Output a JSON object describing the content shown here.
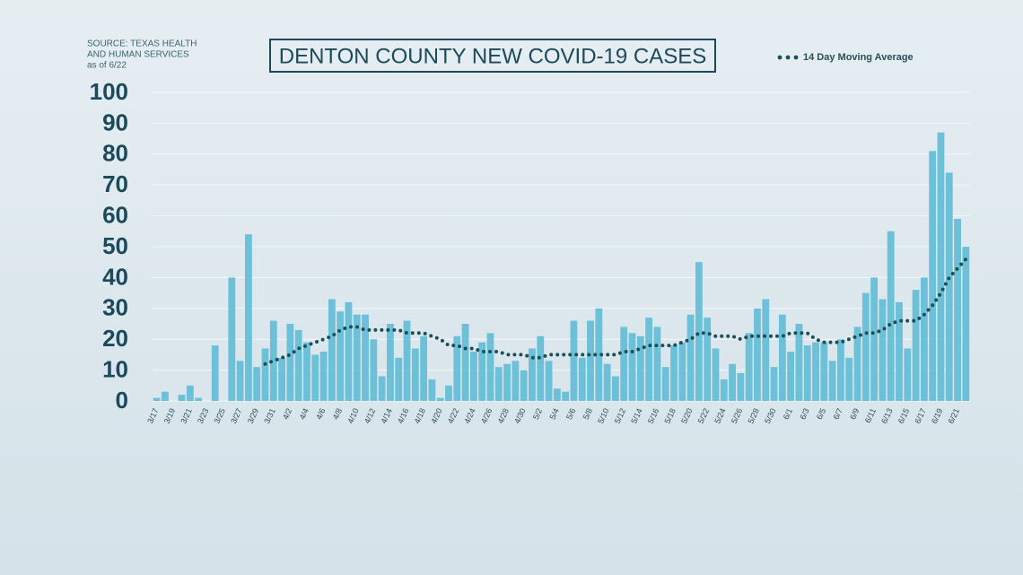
{
  "chart_data": {
    "type": "bar",
    "title": "DENTON COUNTY NEW COVID-19 CASES",
    "source": [
      "SOURCE: TEXAS HEALTH",
      "AND HUMAN SERVICES",
      "as of 6/22"
    ],
    "categories": [
      "3/17",
      null,
      "3/19",
      null,
      "3/21",
      null,
      "3/23",
      null,
      "3/25",
      null,
      "3/27",
      null,
      "3/29",
      null,
      "3/31",
      null,
      "4/2",
      null,
      "4/4",
      null,
      "4/6",
      null,
      "4/8",
      null,
      "4/10",
      null,
      "4/12",
      null,
      "4/14",
      null,
      "4/16",
      null,
      "4/18",
      null,
      "4/20",
      null,
      "4/22",
      null,
      "4/24",
      null,
      "4/26",
      null,
      "4/28",
      null,
      "4/30",
      null,
      "5/2",
      null,
      "5/4",
      null,
      "5/6",
      null,
      "5/8",
      null,
      "5/10",
      null,
      "5/12",
      null,
      "5/14",
      null,
      "5/16",
      null,
      "5/18",
      null,
      "5/20",
      null,
      "5/22",
      null,
      "5/24",
      null,
      "5/26",
      null,
      "5/28",
      null,
      "5/30",
      null,
      "6/1",
      null,
      "6/3",
      null,
      "6/5",
      null,
      "6/7",
      null,
      "6/9",
      null,
      "6/11",
      null,
      "6/13",
      null,
      "6/15",
      null,
      "6/17",
      null,
      "6/19",
      null,
      "6/21",
      null
    ],
    "series": [
      {
        "color": "#6cc0d8",
        "values": [
          1,
          3,
          0,
          2,
          5,
          1,
          0,
          18,
          0,
          40,
          13,
          54,
          11,
          17,
          26,
          14,
          25,
          23,
          19,
          15,
          16,
          33,
          29,
          32,
          28,
          28,
          20,
          8,
          25,
          14,
          26,
          17,
          21,
          7,
          1,
          5,
          21,
          25,
          16,
          19,
          22,
          11,
          12,
          13,
          10,
          17,
          21,
          13,
          4,
          3,
          26,
          14,
          26,
          30,
          12,
          8,
          24,
          22,
          21,
          27,
          24,
          11,
          18,
          19,
          28,
          45,
          27,
          17,
          7,
          12,
          9,
          22,
          30,
          33,
          11,
          28,
          16,
          25,
          18,
          19,
          19,
          13,
          20,
          14,
          24,
          35,
          40,
          33,
          55,
          32,
          17,
          36,
          40,
          81,
          87,
          74,
          59,
          50
        ]
      },
      {
        "name": "14 Day Moving Average",
        "type": "line",
        "color": "#1d4f58",
        "values": [
          null,
          null,
          null,
          null,
          null,
          null,
          null,
          null,
          null,
          null,
          null,
          null,
          null,
          12,
          13,
          14,
          15,
          17,
          18,
          19,
          20,
          21,
          23,
          24,
          24,
          23,
          23,
          23,
          23,
          23,
          22,
          22,
          22,
          21,
          20,
          18,
          18,
          17,
          17,
          16,
          16,
          16,
          15,
          15,
          15,
          14,
          14,
          15,
          15,
          15,
          15,
          15,
          15,
          15,
          15,
          15,
          16,
          16,
          17,
          18,
          18,
          18,
          18,
          19,
          20,
          22,
          22,
          21,
          21,
          21,
          20,
          21,
          21,
          21,
          21,
          21,
          22,
          22,
          22,
          20,
          19,
          19,
          19,
          20,
          21,
          22,
          22,
          23,
          25,
          26,
          26,
          26,
          28,
          31,
          35,
          40,
          43,
          46
        ]
      }
    ],
    "ylim": [
      0,
      100
    ],
    "yticks": [
      0,
      10,
      20,
      30,
      40,
      50,
      60,
      70,
      80,
      90,
      100
    ],
    "grid": true
  }
}
